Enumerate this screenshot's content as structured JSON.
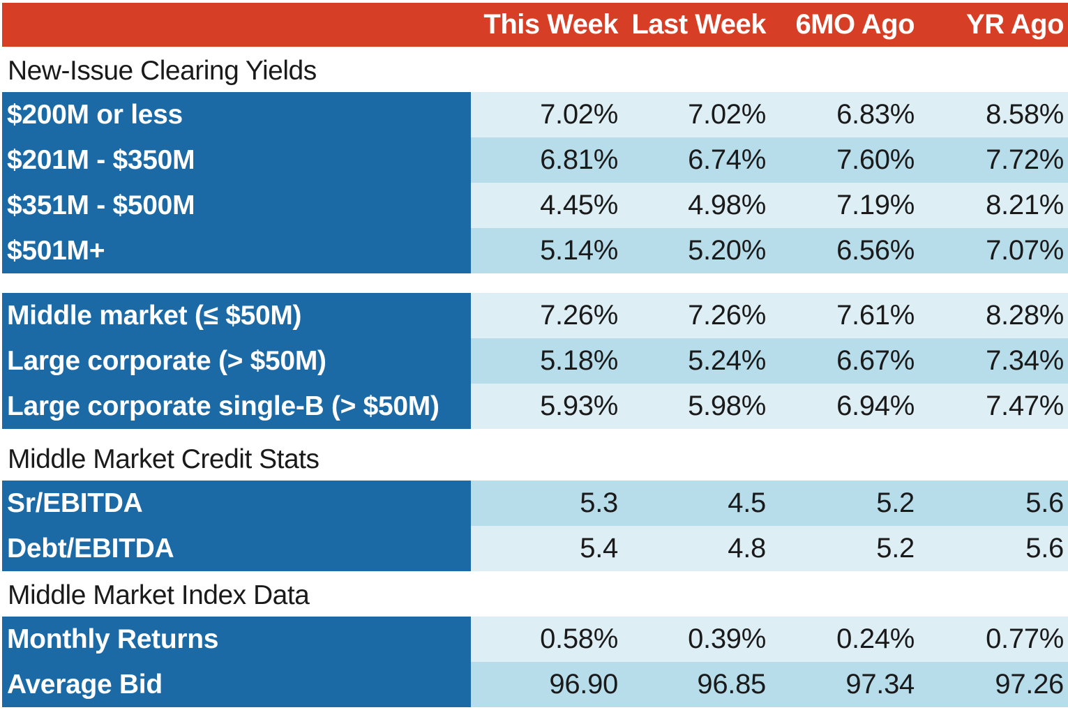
{
  "chart_data": {
    "type": "table",
    "columns": [
      "This Week",
      "Last Week",
      "6MO Ago",
      "YR Ago"
    ],
    "sections": [
      {
        "title": "New-Issue Clearing Yields",
        "rows": [
          {
            "label": "$200M or less",
            "values": [
              "7.02%",
              "7.02%",
              "6.83%",
              "8.58%"
            ]
          },
          {
            "label": "$201M - $350M",
            "values": [
              "6.81%",
              "6.74%",
              "7.60%",
              "7.72%"
            ]
          },
          {
            "label": "$351M - $500M",
            "values": [
              "4.45%",
              "4.98%",
              "7.19%",
              "8.21%"
            ]
          },
          {
            "label": "$501M+",
            "values": [
              "5.14%",
              "5.20%",
              "6.56%",
              "7.07%"
            ]
          }
        ]
      },
      {
        "title": "",
        "rows": [
          {
            "label": "Middle market (≤ $50M)",
            "values": [
              "7.26%",
              "7.26%",
              "7.61%",
              "8.28%"
            ]
          },
          {
            "label": "Large corporate (> $50M)",
            "values": [
              "5.18%",
              "5.24%",
              "6.67%",
              "7.34%"
            ]
          },
          {
            "label": "Large corporate single-B (> $50M)",
            "values": [
              "5.93%",
              "5.98%",
              "6.94%",
              "7.47%"
            ]
          }
        ]
      },
      {
        "title": "Middle Market Credit Stats",
        "rows": [
          {
            "label": "Sr/EBITDA",
            "values": [
              "5.3",
              "4.5",
              "5.2",
              "5.6"
            ]
          },
          {
            "label": "Debt/EBITDA",
            "values": [
              "5.4",
              "4.8",
              "5.2",
              "5.6"
            ]
          }
        ]
      },
      {
        "title": "Middle Market Index Data",
        "rows": [
          {
            "label": "Monthly Returns",
            "values": [
              "0.58%",
              "0.39%",
              "0.24%",
              "0.77%"
            ]
          },
          {
            "label": "Average Bid",
            "values": [
              "96.90",
              "96.85",
              "97.34",
              "97.26"
            ]
          }
        ]
      }
    ]
  },
  "colors": {
    "header": "#d63f25",
    "label_fill": "#1b6aa5",
    "row_light": "#ddeef5",
    "row_mid": "#b7dcea"
  }
}
